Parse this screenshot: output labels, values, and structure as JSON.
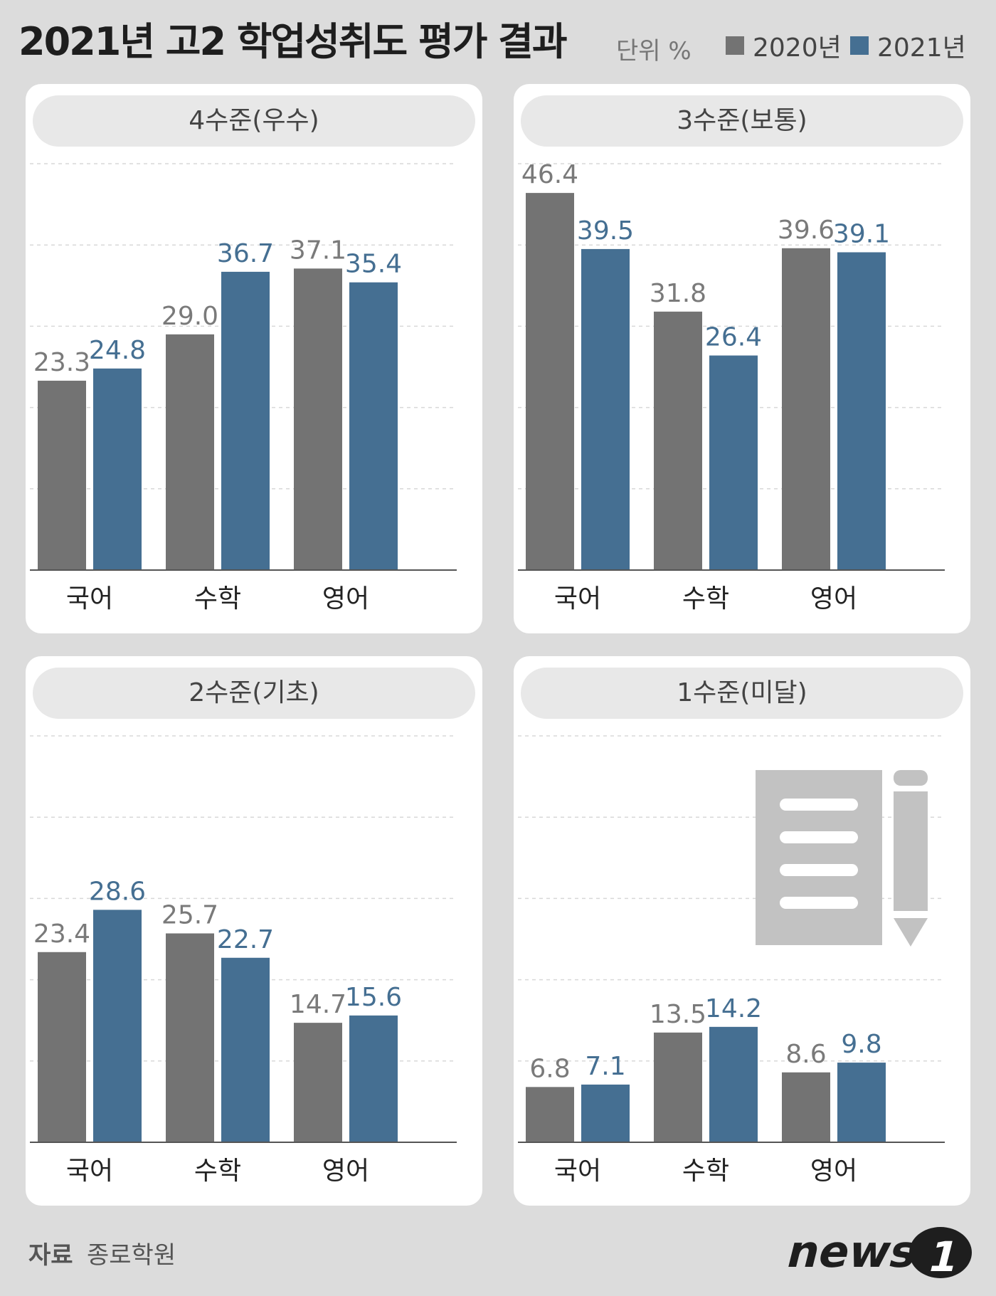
{
  "title": "2021년 고2 학업성취도 평가 결과",
  "unit": "단위 %",
  "legend": [
    {
      "label": "2020년",
      "color": "#737373"
    },
    {
      "label": "2021년",
      "color": "#456f92"
    }
  ],
  "source_label": "자료",
  "source": "종로학원",
  "logo_text": "news 1",
  "chart_data": [
    {
      "type": "bar",
      "title": "4수준(우수)",
      "categories": [
        "국어",
        "수학",
        "영어"
      ],
      "series": [
        {
          "name": "2020년",
          "values": [
            23.3,
            29.0,
            37.1
          ],
          "labels": [
            "23.3",
            "29.0",
            "37.1"
          ]
        },
        {
          "name": "2021년",
          "values": [
            24.8,
            36.7,
            35.4
          ],
          "labels": [
            "24.8",
            "36.7",
            "35.4"
          ]
        }
      ],
      "ylim": [
        0,
        50
      ],
      "grid": true
    },
    {
      "type": "bar",
      "title": "3수준(보통)",
      "categories": [
        "국어",
        "수학",
        "영어"
      ],
      "series": [
        {
          "name": "2020년",
          "values": [
            46.4,
            31.8,
            39.6
          ],
          "labels": [
            "46.4",
            "31.8",
            "39.6"
          ]
        },
        {
          "name": "2021년",
          "values": [
            39.5,
            26.4,
            39.1
          ],
          "labels": [
            "39.5",
            "26.4",
            "39.1"
          ]
        }
      ],
      "ylim": [
        0,
        50
      ],
      "grid": true
    },
    {
      "type": "bar",
      "title": "2수준(기초)",
      "categories": [
        "국어",
        "수학",
        "영어"
      ],
      "series": [
        {
          "name": "2020년",
          "values": [
            23.4,
            25.7,
            14.7
          ],
          "labels": [
            "23.4",
            "25.7",
            "14.7"
          ]
        },
        {
          "name": "2021년",
          "values": [
            28.6,
            22.7,
            15.6
          ],
          "labels": [
            "28.6",
            "22.7",
            "15.6"
          ]
        }
      ],
      "ylim": [
        0,
        50
      ],
      "grid": true
    },
    {
      "type": "bar",
      "title": "1수준(미달)",
      "categories": [
        "국어",
        "수학",
        "영어"
      ],
      "series": [
        {
          "name": "2020년",
          "values": [
            6.8,
            13.5,
            8.6
          ],
          "labels": [
            "6.8",
            "13.5",
            "8.6"
          ]
        },
        {
          "name": "2021년",
          "values": [
            7.1,
            14.2,
            9.8
          ],
          "labels": [
            "7.1",
            "14.2",
            "9.8"
          ]
        }
      ],
      "ylim": [
        0,
        50
      ],
      "grid": true
    }
  ]
}
